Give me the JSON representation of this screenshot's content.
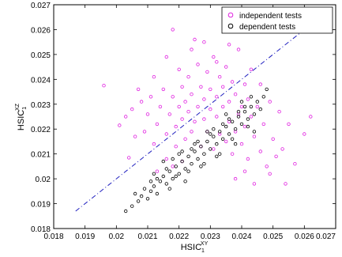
{
  "chart_data": {
    "type": "scatter",
    "title": "",
    "xlabel": "HSIC",
    "xlabel_sub": "1",
    "xlabel_sup": "XY",
    "ylabel": "HSIC",
    "ylabel_sub": "1",
    "ylabel_sup": "XZ",
    "xlim": [
      0.018,
      0.027
    ],
    "ylim": [
      0.018,
      0.027
    ],
    "xticks": [
      0.018,
      0.019,
      0.02,
      0.021,
      0.022,
      0.023,
      0.024,
      0.025,
      0.026,
      0.027
    ],
    "xtick_labels": [
      "0.018",
      "0.019",
      "0.02",
      "0.021",
      "0.022",
      "0.023",
      "0.024",
      "0.025",
      "0.026",
      "0.027"
    ],
    "yticks": [
      0.018,
      0.019,
      0.02,
      0.021,
      0.022,
      0.023,
      0.024,
      0.025,
      0.026,
      0.027
    ],
    "ytick_labels": [
      "0.018",
      "0.019",
      "0.02",
      "0.021",
      "0.022",
      "0.023",
      "0.024",
      "0.025",
      "0.026",
      "0.027"
    ],
    "grid": false,
    "legend_position": "top-right",
    "reference_line": {
      "style": "dash-dot",
      "color": "#1f1fbf",
      "x": [
        0.0187,
        0.026
      ],
      "y": [
        0.0187,
        0.026
      ]
    },
    "series": [
      {
        "name": "independent tests",
        "color": "#e020e0",
        "marker": "open-circle",
        "points": [
          [
            0.0196,
            0.02375
          ],
          [
            0.0201,
            0.02215
          ],
          [
            0.0204,
            0.02085
          ],
          [
            0.0205,
            0.0228
          ],
          [
            0.0207,
            0.0236
          ],
          [
            0.0209,
            0.0219
          ],
          [
            0.021,
            0.0226
          ],
          [
            0.0211,
            0.0233
          ],
          [
            0.0212,
            0.0214
          ],
          [
            0.0212,
            0.0241
          ],
          [
            0.0213,
            0.0222
          ],
          [
            0.0214,
            0.0229
          ],
          [
            0.0215,
            0.0236
          ],
          [
            0.0216,
            0.0218
          ],
          [
            0.0216,
            0.0249
          ],
          [
            0.0217,
            0.0226
          ],
          [
            0.0218,
            0.026
          ],
          [
            0.0218,
            0.0233
          ],
          [
            0.0219,
            0.0213
          ],
          [
            0.0219,
            0.0221
          ],
          [
            0.022,
            0.0244
          ],
          [
            0.022,
            0.0229
          ],
          [
            0.0221,
            0.0224
          ],
          [
            0.0221,
            0.0237
          ],
          [
            0.0222,
            0.0216
          ],
          [
            0.0222,
            0.0231
          ],
          [
            0.0223,
            0.0227
          ],
          [
            0.0223,
            0.0241
          ],
          [
            0.0224,
            0.0219
          ],
          [
            0.0224,
            0.0234
          ],
          [
            0.0225,
            0.0256
          ],
          [
            0.0225,
            0.0223
          ],
          [
            0.0226,
            0.0229
          ],
          [
            0.0226,
            0.0246
          ],
          [
            0.0227,
            0.0213
          ],
          [
            0.0227,
            0.0237
          ],
          [
            0.0228,
            0.0224
          ],
          [
            0.0228,
            0.0232
          ],
          [
            0.0229,
            0.0219
          ],
          [
            0.0229,
            0.0243
          ],
          [
            0.023,
            0.0228
          ],
          [
            0.023,
            0.0236
          ],
          [
            0.0231,
            0.0212
          ],
          [
            0.0231,
            0.0249
          ],
          [
            0.0232,
            0.0225
          ],
          [
            0.0232,
            0.0233
          ],
          [
            0.0233,
            0.0218
          ],
          [
            0.0233,
            0.0241
          ],
          [
            0.0234,
            0.0229
          ],
          [
            0.0234,
            0.0237
          ],
          [
            0.0235,
            0.0215
          ],
          [
            0.0235,
            0.0245
          ],
          [
            0.0236,
            0.0223
          ],
          [
            0.0236,
            0.0231
          ],
          [
            0.0237,
            0.021
          ],
          [
            0.0237,
            0.0239
          ],
          [
            0.0238,
            0.0219
          ],
          [
            0.0238,
            0.0234
          ],
          [
            0.0239,
            0.0226
          ],
          [
            0.0239,
            0.0252
          ],
          [
            0.024,
            0.0214
          ],
          [
            0.024,
            0.0229
          ],
          [
            0.0241,
            0.0221
          ],
          [
            0.0241,
            0.0238
          ],
          [
            0.0242,
            0.0208
          ],
          [
            0.0242,
            0.0232
          ],
          [
            0.0243,
            0.0225
          ],
          [
            0.0243,
            0.0244
          ],
          [
            0.0244,
            0.0217
          ],
          [
            0.0245,
            0.0229
          ],
          [
            0.0246,
            0.0211
          ],
          [
            0.0246,
            0.0238
          ],
          [
            0.0247,
            0.0222
          ],
          [
            0.0248,
            0.0205
          ],
          [
            0.0249,
            0.0231
          ],
          [
            0.025,
            0.0216
          ],
          [
            0.0251,
            0.0209
          ],
          [
            0.0252,
            0.0227
          ],
          [
            0.0253,
            0.0212
          ],
          [
            0.0255,
            0.0222
          ],
          [
            0.0257,
            0.0206
          ],
          [
            0.026,
            0.0218
          ],
          [
            0.0262,
            0.0225
          ],
          [
            0.0216,
            0.0208
          ],
          [
            0.0213,
            0.0203
          ],
          [
            0.0218,
            0.0205
          ],
          [
            0.0206,
            0.0217
          ],
          [
            0.0203,
            0.0225
          ],
          [
            0.0208,
            0.0231
          ],
          [
            0.0221,
            0.0207
          ],
          [
            0.0224,
            0.0252
          ],
          [
            0.0228,
            0.0255
          ],
          [
            0.0232,
            0.0247
          ],
          [
            0.0236,
            0.0254
          ],
          [
            0.0241,
            0.0203
          ],
          [
            0.0244,
            0.0198
          ],
          [
            0.0238,
            0.02
          ],
          [
            0.0249,
            0.0202
          ],
          [
            0.0254,
            0.0198
          ]
        ]
      },
      {
        "name": "dependent tests",
        "color": "#000000",
        "marker": "open-circle",
        "points": [
          [
            0.0203,
            0.0187
          ],
          [
            0.0205,
            0.0189
          ],
          [
            0.0207,
            0.0191
          ],
          [
            0.0208,
            0.0193
          ],
          [
            0.021,
            0.0192
          ],
          [
            0.0211,
            0.0195
          ],
          [
            0.0212,
            0.0197
          ],
          [
            0.0213,
            0.0194
          ],
          [
            0.0214,
            0.0199
          ],
          [
            0.0215,
            0.0201
          ],
          [
            0.0216,
            0.0198
          ],
          [
            0.0217,
            0.0203
          ],
          [
            0.0218,
            0.02
          ],
          [
            0.0219,
            0.0205
          ],
          [
            0.022,
            0.0202
          ],
          [
            0.0221,
            0.0207
          ],
          [
            0.0222,
            0.0204
          ],
          [
            0.0223,
            0.0209
          ],
          [
            0.0224,
            0.0206
          ],
          [
            0.0225,
            0.0211
          ],
          [
            0.0226,
            0.0208
          ],
          [
            0.0227,
            0.0213
          ],
          [
            0.0228,
            0.021
          ],
          [
            0.0229,
            0.0215
          ],
          [
            0.023,
            0.0212
          ],
          [
            0.0231,
            0.0217
          ],
          [
            0.0232,
            0.0214
          ],
          [
            0.0233,
            0.0219
          ],
          [
            0.0234,
            0.0216
          ],
          [
            0.0235,
            0.0221
          ],
          [
            0.0236,
            0.0218
          ],
          [
            0.0237,
            0.0223
          ],
          [
            0.0238,
            0.022
          ],
          [
            0.0239,
            0.0225
          ],
          [
            0.024,
            0.0222
          ],
          [
            0.0241,
            0.0227
          ],
          [
            0.0242,
            0.0224
          ],
          [
            0.0243,
            0.0229
          ],
          [
            0.0244,
            0.0226
          ],
          [
            0.0245,
            0.0231
          ],
          [
            0.0246,
            0.0228
          ],
          [
            0.0247,
            0.0233
          ],
          [
            0.0248,
            0.0236
          ],
          [
            0.0209,
            0.0196
          ],
          [
            0.0213,
            0.02
          ],
          [
            0.0216,
            0.0204
          ],
          [
            0.0219,
            0.0201
          ],
          [
            0.0221,
            0.0211
          ],
          [
            0.0223,
            0.0203
          ],
          [
            0.0226,
            0.0215
          ],
          [
            0.0228,
            0.0206
          ],
          [
            0.0231,
            0.022
          ],
          [
            0.0233,
            0.021
          ],
          [
            0.0236,
            0.0224
          ],
          [
            0.0238,
            0.0214
          ],
          [
            0.0241,
            0.0229
          ],
          [
            0.0244,
            0.0219
          ],
          [
            0.0217,
            0.0196
          ],
          [
            0.0222,
            0.0199
          ],
          [
            0.0227,
            0.0205
          ],
          [
            0.0232,
            0.0209
          ],
          [
            0.0237,
            0.0216
          ],
          [
            0.0242,
            0.0221
          ],
          [
            0.0215,
            0.0207
          ],
          [
            0.022,
            0.021
          ],
          [
            0.0225,
            0.0214
          ],
          [
            0.023,
            0.0218
          ],
          [
            0.0235,
            0.0226
          ],
          [
            0.024,
            0.0231
          ],
          [
            0.0206,
            0.0194
          ],
          [
            0.0211,
            0.0199
          ],
          [
            0.0224,
            0.0212
          ],
          [
            0.0234,
            0.0222
          ],
          [
            0.0239,
            0.0227
          ],
          [
            0.0243,
            0.0233
          ],
          [
            0.0212,
            0.0202
          ],
          [
            0.0218,
            0.0208
          ],
          [
            0.0229,
            0.0219
          ]
        ]
      }
    ]
  }
}
